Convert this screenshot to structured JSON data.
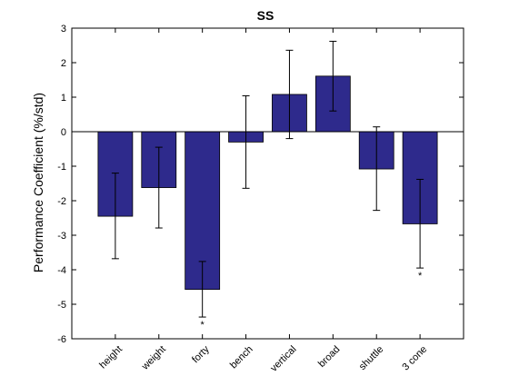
{
  "chart_data": {
    "type": "bar",
    "title": "SS",
    "xlabel": "",
    "ylabel": "Performance Coefficient (%/std)",
    "ylim": [
      -6,
      3
    ],
    "yticks": [
      -6,
      -5,
      -4,
      -3,
      -2,
      -1,
      0,
      1,
      2,
      3
    ],
    "categories": [
      "height",
      "weight",
      "forty",
      "bench",
      "vertical",
      "broad",
      "shuttle",
      "3 cone"
    ],
    "values": [
      -2.45,
      -1.62,
      -4.57,
      -0.3,
      1.08,
      1.61,
      -1.08,
      -2.67
    ],
    "error_low": [
      -3.68,
      -2.79,
      -5.37,
      -1.64,
      -0.2,
      0.6,
      -2.28,
      -3.95
    ],
    "error_high": [
      -1.2,
      -0.45,
      -3.76,
      1.04,
      2.36,
      2.62,
      0.14,
      -1.38
    ],
    "significance": [
      "",
      "",
      "*",
      "",
      "",
      "",
      "",
      "*"
    ],
    "bar_color": "#2e2a8c",
    "grid": false,
    "legend": "none"
  }
}
